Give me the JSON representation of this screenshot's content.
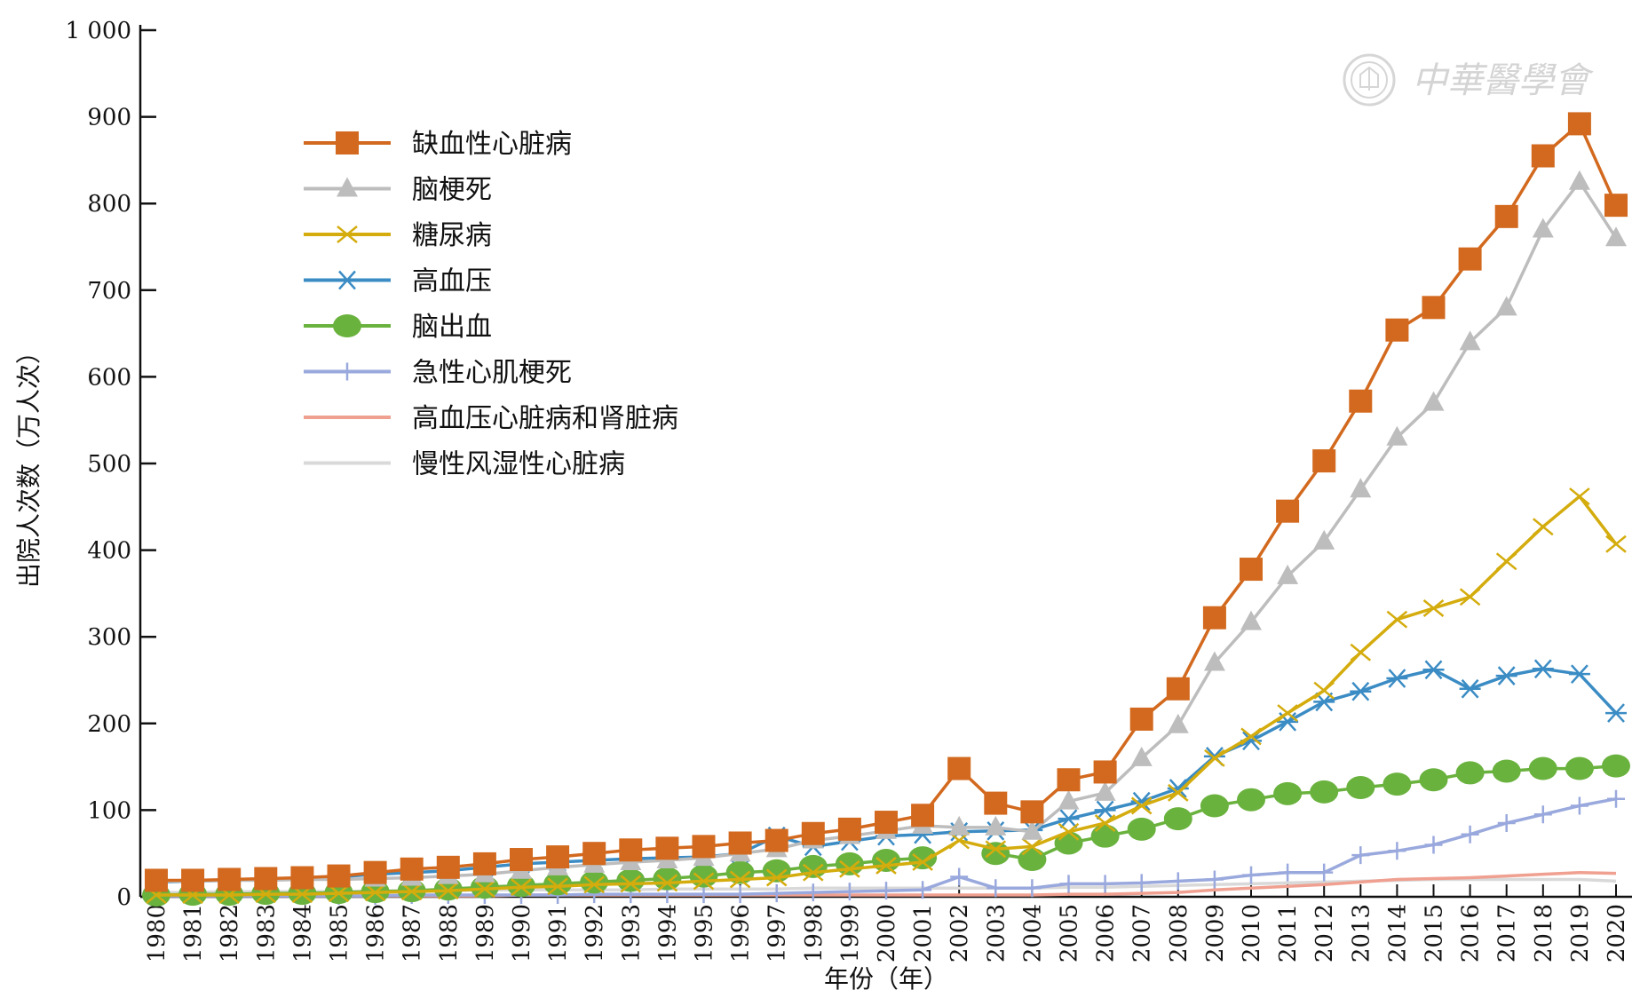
{
  "chart_data": {
    "type": "line",
    "title": "",
    "xlabel": "年份（年）",
    "ylabel": "出院人次数（万人次）",
    "ylim": [
      0,
      1000
    ],
    "yticks": [
      0,
      100,
      200,
      300,
      400,
      500,
      600,
      700,
      800,
      900,
      1000
    ],
    "ytick_labels": [
      "0",
      "100",
      "200",
      "300",
      "400",
      "500",
      "600",
      "700",
      "800",
      "900",
      "1 000"
    ],
    "categories": [
      "1980",
      "1981",
      "1982",
      "1983",
      "1984",
      "1985",
      "1986",
      "1987",
      "1988",
      "1989",
      "1990",
      "1991",
      "1992",
      "1993",
      "1994",
      "1995",
      "1996",
      "1997",
      "1998",
      "1999",
      "2000",
      "2001",
      "2002",
      "2003",
      "2004",
      "2005",
      "2006",
      "2007",
      "2008",
      "2009",
      "2010",
      "2011",
      "2012",
      "2013",
      "2014",
      "2015",
      "2016",
      "2017",
      "2018",
      "2019",
      "2020"
    ],
    "grid": false,
    "legend_position": "top-left",
    "series": [
      {
        "name": "缺血性心脏病",
        "color": "#d2691e",
        "marker": "square",
        "values": [
          19,
          19,
          20,
          21,
          22,
          24,
          28,
          32,
          34,
          38,
          43,
          46,
          50,
          54,
          56,
          58,
          62,
          65,
          73,
          78,
          86,
          94,
          148,
          108,
          98,
          135,
          144,
          205,
          240,
          322,
          378,
          445,
          503,
          572,
          654,
          680,
          736,
          785,
          855,
          892,
          798
        ]
      },
      {
        "name": "脑梗死",
        "color": "#bdbdbd",
        "marker": "triangle",
        "values": [
          18,
          18,
          19,
          19,
          20,
          20,
          21,
          22,
          24,
          26,
          30,
          34,
          37,
          40,
          42,
          45,
          50,
          55,
          65,
          70,
          76,
          82,
          80,
          80,
          75,
          110,
          120,
          160,
          198,
          270,
          317,
          370,
          410,
          470,
          530,
          570,
          640,
          680,
          770,
          825,
          760
        ]
      },
      {
        "name": "糖尿病",
        "color": "#d4ac0d",
        "marker": "x",
        "values": [
          2,
          2,
          2,
          3,
          3,
          4,
          5,
          6,
          7,
          9,
          11,
          12,
          14,
          15,
          16,
          18,
          20,
          22,
          28,
          32,
          36,
          40,
          65,
          55,
          58,
          75,
          85,
          105,
          120,
          160,
          185,
          212,
          238,
          282,
          320,
          333,
          346,
          387,
          427,
          462,
          407
        ]
      },
      {
        "name": "高血压",
        "color": "#3b8cc4",
        "marker": "asterisk",
        "values": [
          17,
          18,
          19,
          20,
          21,
          23,
          26,
          28,
          30,
          34,
          38,
          40,
          42,
          44,
          45,
          46,
          50,
          70,
          58,
          64,
          70,
          72,
          75,
          76,
          77,
          90,
          100,
          110,
          125,
          162,
          180,
          202,
          225,
          237,
          252,
          262,
          240,
          255,
          263,
          257,
          212
        ]
      },
      {
        "name": "脑出血",
        "color": "#6ab23e",
        "marker": "circle",
        "values": [
          2,
          3,
          3,
          4,
          4,
          5,
          6,
          7,
          9,
          11,
          13,
          15,
          17,
          19,
          21,
          24,
          28,
          30,
          35,
          38,
          42,
          45,
          null,
          50,
          43,
          62,
          70,
          78,
          90,
          105,
          112,
          119,
          121,
          126,
          130,
          135,
          143,
          145,
          148,
          148,
          151
        ]
      },
      {
        "name": "急性心肌梗死",
        "color": "#9aa9dd",
        "marker": "plus",
        "values": [
          1,
          1,
          1,
          1,
          1,
          1,
          1,
          2,
          2,
          2,
          2,
          2,
          3,
          3,
          3,
          3,
          3,
          4,
          5,
          6,
          7,
          8,
          23,
          10,
          10,
          15,
          15,
          16,
          18,
          20,
          25,
          28,
          28,
          48,
          53,
          60,
          72,
          85,
          95,
          105,
          113
        ]
      },
      {
        "name": "高血压心脏病和肾脏病",
        "color": "#f0a090",
        "marker": "none",
        "values": [
          1,
          1,
          1,
          1,
          1,
          1,
          1,
          1,
          1,
          1,
          2,
          2,
          2,
          2,
          2,
          2,
          2,
          2,
          2,
          2,
          2,
          2,
          2,
          2,
          2,
          3,
          3,
          4,
          5,
          8,
          10,
          12,
          14,
          17,
          20,
          21,
          22,
          24,
          26,
          28,
          27
        ]
      },
      {
        "name": "慢性风湿性心脏病",
        "color": "#d9d9d9",
        "marker": "none",
        "values": [
          5,
          5,
          6,
          6,
          6,
          6,
          7,
          7,
          7,
          8,
          8,
          8,
          8,
          8,
          9,
          9,
          9,
          9,
          10,
          10,
          10,
          10,
          10,
          10,
          10,
          11,
          11,
          12,
          13,
          14,
          15,
          16,
          17,
          18,
          19,
          20,
          20,
          20,
          20,
          20,
          18
        ]
      }
    ]
  },
  "watermark": {
    "text": "中華醫學會"
  }
}
